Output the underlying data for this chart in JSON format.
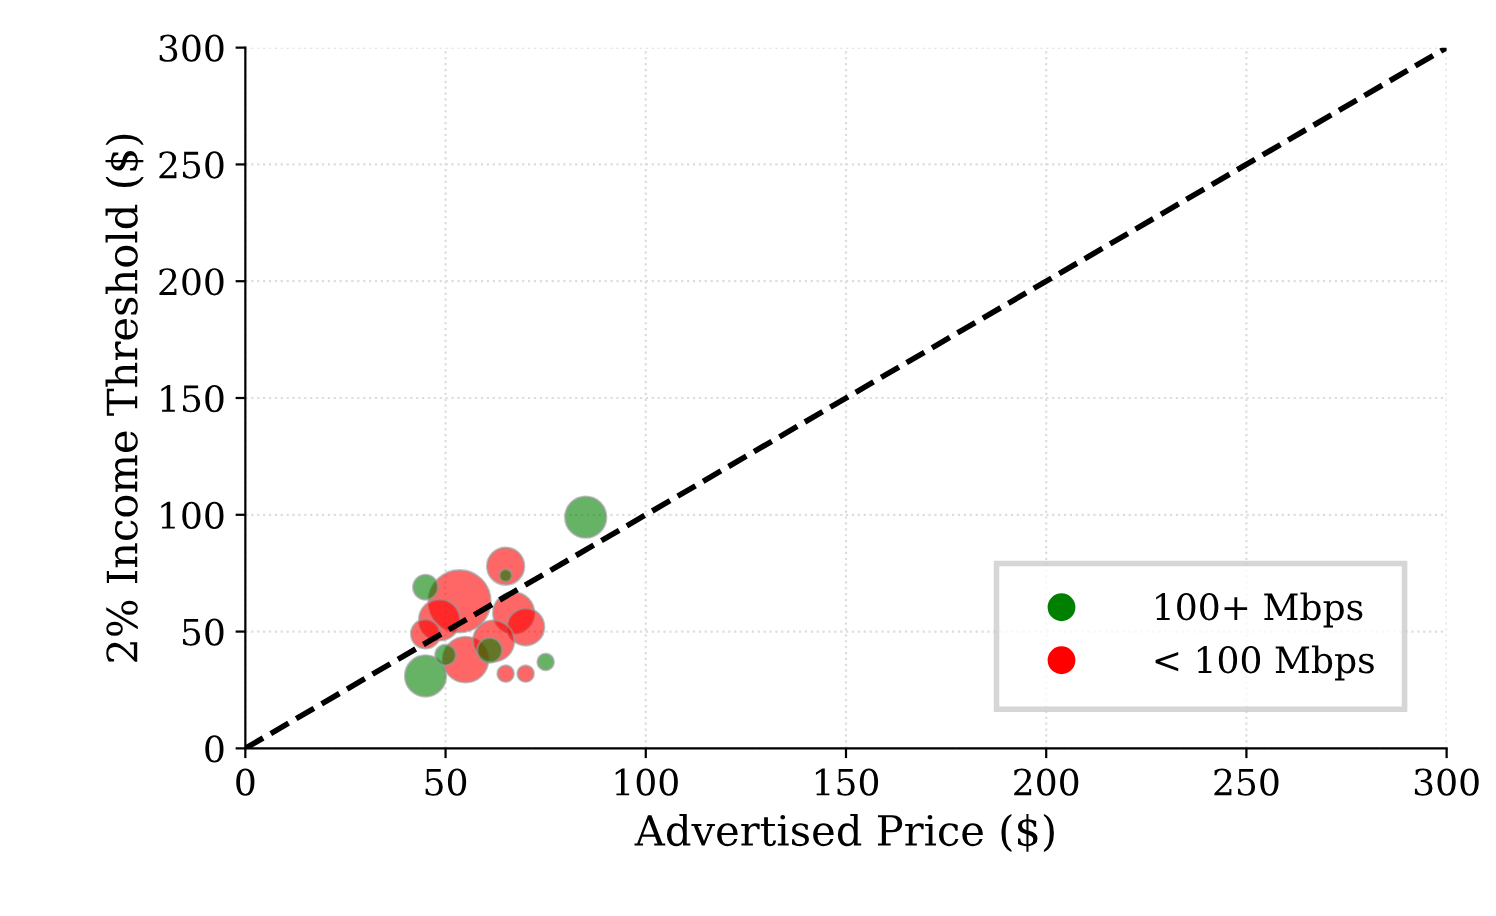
{
  "chart_data": {
    "type": "bubble",
    "xlabel": "Advertised Price ($)",
    "ylabel": "2% Income Threshold ($)",
    "xlim": [
      0,
      300
    ],
    "ylim": [
      0,
      300
    ],
    "xticks": [
      0,
      50,
      100,
      150,
      200,
      250,
      300
    ],
    "yticks": [
      0,
      50,
      100,
      150,
      200,
      250,
      300
    ],
    "grid": true,
    "legend": "bottom right",
    "series": [
      {
        "name": "100+ Mbps",
        "color": "#008000",
        "x": [
          85,
          45,
          45,
          75,
          65,
          50,
          61
        ],
        "values": [
          99,
          69,
          31,
          37,
          74,
          40,
          42
        ],
        "sizes": [
          0.44,
          0.16,
          0.44,
          0.07,
          0.04,
          0.11,
          0.16
        ]
      },
      {
        "name": "< 100 Mbps",
        "color": "#ff0000",
        "x": [
          65,
          53.5,
          67,
          48.5,
          70,
          55,
          62,
          65,
          70,
          45
        ],
        "values": [
          78,
          63,
          58,
          55,
          52,
          38,
          46,
          32,
          32,
          49
        ],
        "sizes": [
          0.36,
          1,
          0.44,
          0.44,
          0.36,
          0.54,
          0.44,
          0.07,
          0.07,
          0.22
        ]
      },
      {
        "type": "line",
        "color": "#000000",
        "line_style": "dashed",
        "marker": "none",
        "x": [
          0,
          300
        ],
        "values": [
          0,
          300
        ]
      }
    ]
  }
}
